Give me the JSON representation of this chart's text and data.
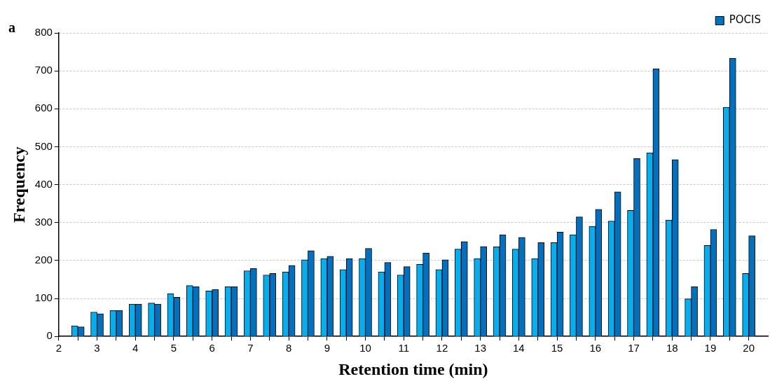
{
  "chart_data": {
    "type": "bar",
    "xlabel": "Retention time (min)",
    "ylabel": "Frequency",
    "annotations": [
      "a"
    ],
    "x": [
      2.5,
      3,
      3.5,
      4,
      4.5,
      5,
      5.5,
      6,
      6.5,
      7,
      7.5,
      8,
      8.5,
      9,
      9.5,
      10,
      10.5,
      11,
      11.5,
      12,
      12.5,
      13,
      13.5,
      14,
      14.5,
      15,
      15.5,
      16,
      16.5,
      17,
      17.5,
      18,
      18.5,
      19,
      19.5,
      20
    ],
    "series": [
      {
        "color": "#00b0f0",
        "values": [
          28,
          64,
          68,
          85,
          88,
          113,
          134,
          120,
          131,
          173,
          162,
          170,
          202,
          205,
          176,
          205,
          170,
          162,
          190,
          176,
          230,
          205,
          236,
          230,
          205,
          247,
          268,
          290,
          304,
          332,
          484,
          307,
          99,
          240,
          604,
          166
        ]
      },
      {
        "name": "POCIS",
        "color": "#0070c0",
        "values": [
          25,
          60,
          68,
          85,
          85,
          103,
          131,
          124,
          131,
          179,
          166,
          187,
          226,
          211,
          205,
          232,
          195,
          184,
          220,
          202,
          250,
          237,
          268,
          261,
          247,
          275,
          315,
          335,
          381,
          469,
          705,
          466,
          131,
          282,
          733,
          265
        ]
      }
    ],
    "xlim": [
      2,
      20.5
    ],
    "xticks": [
      2,
      {
        "value": 2.5,
        "label": null
      },
      3,
      {
        "value": 3.5,
        "label": null
      },
      4,
      {
        "value": 4.5,
        "label": null
      },
      5,
      {
        "value": 5.5,
        "label": null
      },
      6,
      {
        "value": 6.5,
        "label": null
      },
      7,
      {
        "value": 7.5,
        "label": null
      },
      8,
      {
        "value": 8.5,
        "label": null
      },
      9,
      {
        "value": 9.5,
        "label": null
      },
      10,
      {
        "value": 10.5,
        "label": null
      },
      11,
      {
        "value": 11.5,
        "label": null
      },
      12,
      {
        "value": 12.5,
        "label": null
      },
      13,
      {
        "value": 13.5,
        "label": null
      },
      14,
      {
        "value": 14.5,
        "label": null
      },
      15,
      {
        "value": 15.5,
        "label": null
      },
      16,
      {
        "value": 16.5,
        "label": null
      },
      17,
      {
        "value": 17.5,
        "label": null
      },
      18,
      {
        "value": 18.5,
        "label": null
      },
      19,
      {
        "value": 19.5,
        "label": null
      },
      20
    ],
    "ylim": [
      0,
      800
    ],
    "yticks": [
      0,
      100,
      200,
      300,
      400,
      500,
      600,
      700,
      800
    ],
    "grid": "y",
    "legend": "top right"
  }
}
